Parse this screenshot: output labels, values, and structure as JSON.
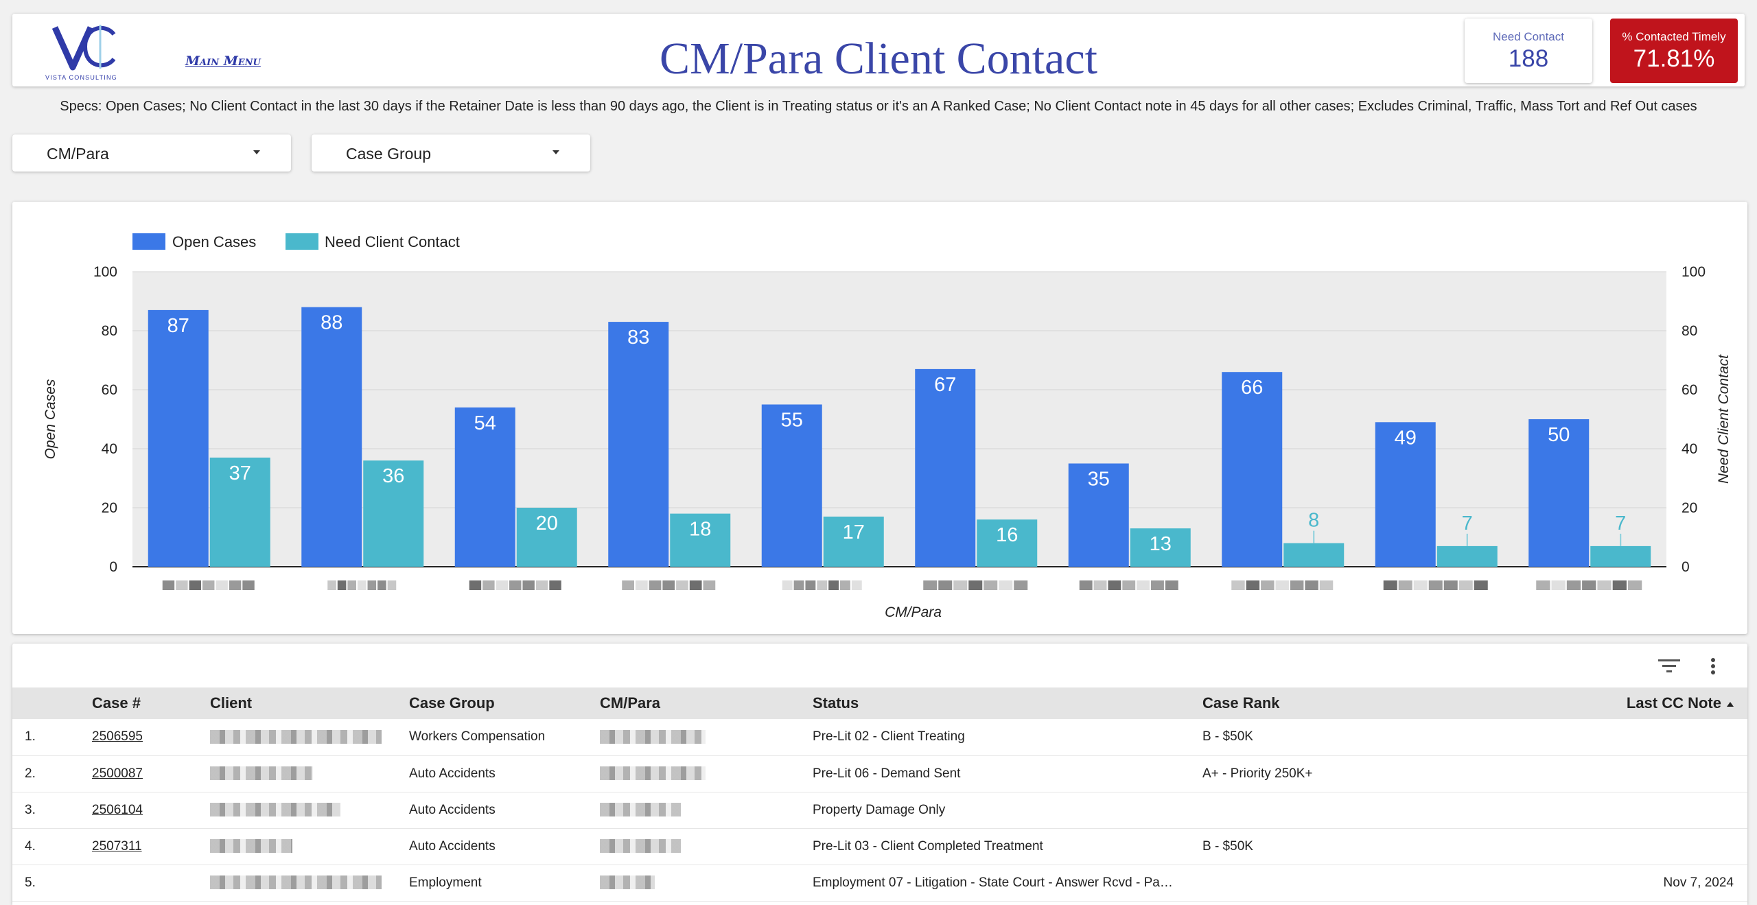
{
  "header": {
    "logo_text": "VISTA CONSULTING",
    "main_menu_label": "Main Menu",
    "title": "CM/Para Client Contact",
    "kpi_need_label": "Need Contact",
    "kpi_need_value": "188",
    "kpi_timely_label": "% Contacted Timely",
    "kpi_timely_value": "71.81%"
  },
  "specs": "Specs:  Open Cases;  No Client Contact in the last 30 days if the Retainer Date is less than 90 days ago, the Client is in Treating status or it's an A Ranked Case;  No Client Contact note in 45 days for all other cases;  Excludes Criminal, Traffic, Mass Tort and Ref Out cases",
  "filters": [
    {
      "label": "CM/Para"
    },
    {
      "label": "Case Group"
    }
  ],
  "colors": {
    "open_cases": "#3b78e7",
    "need_contact": "#4ab8cc",
    "kpi_red": "#c0141c",
    "title_blue": "#3a46a8"
  },
  "chart_data": {
    "type": "bar",
    "categories": [
      "",
      "",
      "",
      "",
      "",
      "",
      "",
      "",
      "",
      ""
    ],
    "series": [
      {
        "name": "Open Cases",
        "values": [
          87,
          88,
          54,
          83,
          55,
          67,
          35,
          66,
          49,
          50
        ]
      },
      {
        "name": "Need Client Contact",
        "values": [
          37,
          36,
          20,
          18,
          17,
          16,
          13,
          8,
          7,
          7
        ]
      }
    ],
    "xlabel": "CM/Para",
    "ylabel": "Open Cases",
    "y2label": "Need Client Contact",
    "ylim": [
      0,
      100
    ],
    "yticks": [
      "0",
      "20",
      "40",
      "60",
      "80",
      "100"
    ],
    "grid": true,
    "legend_position": "top-left"
  },
  "table": {
    "columns": [
      "Case #",
      "Client",
      "Case Group",
      "CM/Para",
      "Status",
      "Case Rank",
      "Last CC Note"
    ],
    "rows": [
      {
        "num": "1.",
        "case": "2506595",
        "group": "Workers Compensation",
        "status": "Pre-Lit 02 - Client Treating",
        "rank": "B - $50K",
        "last": ""
      },
      {
        "num": "2.",
        "case": "2500087",
        "group": "Auto Accidents",
        "status": "Pre-Lit 06 - Demand Sent",
        "rank": "A+ - Priority 250K+",
        "last": ""
      },
      {
        "num": "3.",
        "case": "2506104",
        "group": "Auto Accidents",
        "status": "Property Damage Only",
        "rank": "",
        "last": ""
      },
      {
        "num": "4.",
        "case": "2507311",
        "group": "Auto Accidents",
        "status": "Pre-Lit 03 - Client Completed Treatment",
        "rank": "B - $50K",
        "last": ""
      },
      {
        "num": "5.",
        "case": "",
        "group": "Employment",
        "status": "Employment 07 - Litigation - State Court - Answer Rcvd - Pa…",
        "rank": "",
        "last": "Nov 7, 2024"
      }
    ]
  }
}
